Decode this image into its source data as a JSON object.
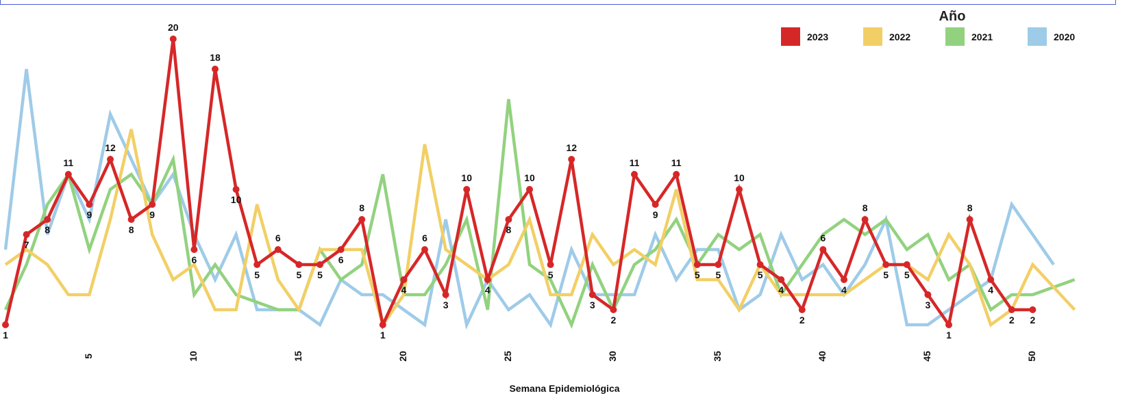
{
  "legend": {
    "title": "Año",
    "items": [
      {
        "label": "2023",
        "color": "#d62728"
      },
      {
        "label": "2022",
        "color": "#f2cf66"
      },
      {
        "label": "2021",
        "color": "#92d27f"
      },
      {
        "label": "2020",
        "color": "#9ecbe8"
      }
    ]
  },
  "chart_data": {
    "type": "line",
    "xlabel": "Semana Epidemiológica",
    "ylabel": "",
    "xlim": [
      1,
      52
    ],
    "ylim": [
      1,
      20
    ],
    "x_ticks": [
      5,
      10,
      15,
      20,
      25,
      30,
      35,
      40,
      45,
      50
    ],
    "grid": false,
    "legend_position": "top-right",
    "x": [
      1,
      2,
      3,
      4,
      5,
      6,
      7,
      8,
      9,
      10,
      11,
      12,
      13,
      14,
      15,
      16,
      17,
      18,
      19,
      20,
      21,
      22,
      23,
      24,
      25,
      26,
      27,
      28,
      29,
      30,
      31,
      32,
      33,
      34,
      35,
      36,
      37,
      38,
      39,
      40,
      41,
      42,
      43,
      44,
      45,
      46,
      47,
      48,
      49,
      50,
      51,
      52
    ],
    "series": [
      {
        "name": "2020",
        "color": "#9ecbe8",
        "values": [
          6,
          18,
          7,
          11,
          8,
          15,
          12,
          9,
          11,
          7,
          4,
          7,
          2,
          2,
          2,
          1,
          4,
          3,
          3,
          2,
          1,
          8,
          1,
          4,
          2,
          3,
          1,
          6,
          3,
          3,
          3,
          7,
          4,
          6,
          6,
          2,
          3,
          7,
          4,
          5,
          3,
          5,
          8,
          1,
          1,
          2,
          3,
          4,
          9,
          7,
          5,
          null
        ]
      },
      {
        "name": "2021",
        "color": "#92d27f",
        "values": [
          2,
          5,
          9,
          11,
          6,
          10,
          11,
          9,
          12,
          3,
          5,
          3,
          2.5,
          2,
          2,
          6,
          4,
          5,
          11,
          3,
          3,
          5,
          8,
          2,
          16,
          5,
          4,
          1,
          5,
          2,
          5,
          6,
          8,
          5,
          7,
          6,
          7,
          3,
          5,
          7,
          8,
          7,
          8,
          6,
          7,
          4,
          5,
          2,
          3,
          3,
          3.5,
          4
        ]
      },
      {
        "name": "2022",
        "color": "#f2cf66",
        "values": [
          5,
          6,
          5,
          3,
          3,
          8,
          14,
          7,
          4,
          5,
          2,
          2,
          9,
          4,
          2,
          6,
          6,
          6,
          1,
          3,
          13,
          6,
          5,
          4,
          5,
          8,
          3,
          3,
          7,
          5,
          6,
          5,
          10,
          4,
          4,
          2,
          5,
          3,
          3,
          3,
          3,
          4,
          5,
          5,
          4,
          7,
          5,
          1,
          2,
          5,
          3.5,
          2
        ]
      },
      {
        "name": "2023",
        "color": "#d62728",
        "values": [
          1,
          7,
          8,
          11,
          9,
          12,
          8,
          9,
          20,
          6,
          18,
          10,
          5,
          6,
          5,
          5,
          6,
          8,
          1,
          4,
          6,
          3,
          10,
          4,
          8,
          10,
          5,
          12,
          3,
          2,
          11,
          9,
          11,
          5,
          5,
          10,
          5,
          4,
          2,
          6,
          4,
          8,
          5,
          5,
          3,
          1,
          8,
          4,
          2,
          2,
          null,
          null
        ]
      }
    ],
    "data_labels": {
      "series": "2023",
      "values": [
        1,
        7,
        8,
        11,
        9,
        12,
        8,
        9,
        20,
        6,
        18,
        10,
        5,
        6,
        5,
        5,
        6,
        8,
        1,
        4,
        6,
        3,
        10,
        4,
        8,
        10,
        5,
        12,
        3,
        2,
        11,
        9,
        11,
        5,
        5,
        10,
        5,
        4,
        2,
        6,
        4,
        8,
        5,
        5,
        3,
        1,
        8,
        4,
        2,
        2
      ]
    }
  }
}
